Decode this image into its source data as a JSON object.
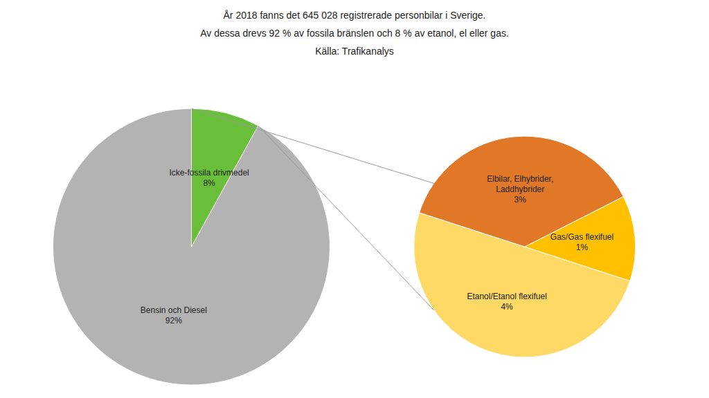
{
  "chart_data": [
    {
      "type": "pie",
      "title": "År 2018 fanns det 645 028 registrerade personbilar i Sverige.",
      "subtitle": "Av dessa drevs 92 % av fossila bränslen och 8 % av etanol, el eller gas.",
      "annotations": [
        "Källa: Trafikanalys"
      ],
      "categories": [
        "Bensin och Diesel",
        "Icke-fossila drivmedel"
      ],
      "values": [
        92,
        8
      ],
      "value_labels": [
        "92%",
        "8%"
      ],
      "colors": [
        "#b3b3b3",
        "#6abf3a"
      ],
      "data_labels": true,
      "legend": false
    },
    {
      "type": "pie",
      "categories": [
        "Etanol/Etanol flexifuel",
        "Gas/Gas flexifuel",
        "Elbilar, Elhybrider,\nLaddhybrider"
      ],
      "values": [
        4,
        1,
        3
      ],
      "value_labels": [
        "4%",
        "1%",
        "3%"
      ],
      "colors": [
        "#ffd966",
        "#ffc000",
        "#e07828"
      ],
      "data_labels": true,
      "legend": false
    }
  ]
}
